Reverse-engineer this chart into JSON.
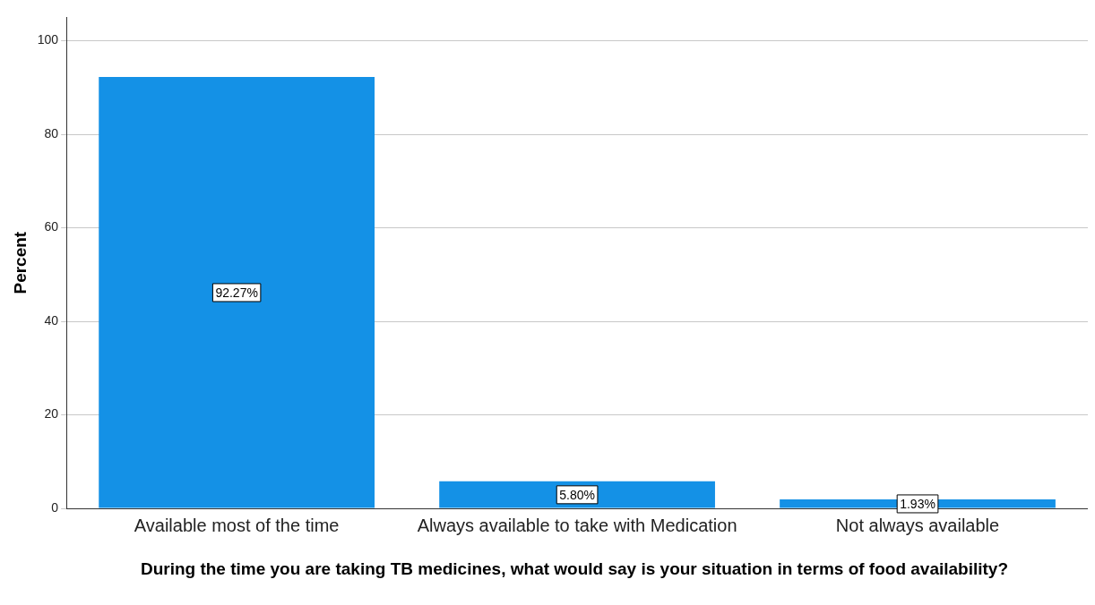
{
  "chart_data": {
    "type": "bar",
    "xlabel": "During the time you are taking TB medicines, what would say is your situation in terms of food availability?",
    "ylabel": "Percent",
    "categories": [
      "Available most of the time",
      "Always available to take with Medication",
      "Not always available"
    ],
    "values": [
      92.27,
      5.8,
      1.93
    ],
    "value_labels": [
      "92.27%",
      "5.80%",
      "1.93%"
    ],
    "color": "#1491e6",
    "ylim": [
      0,
      105
    ],
    "yticks": [
      0,
      20,
      40,
      60,
      80,
      100
    ],
    "grid": "y",
    "legend": false
  }
}
